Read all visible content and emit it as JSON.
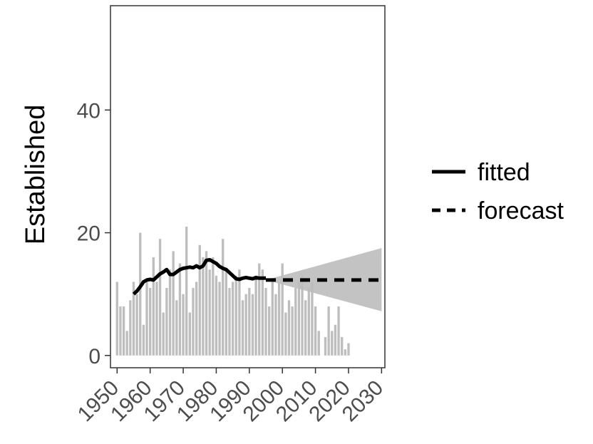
{
  "chart_data": {
    "type": "bar",
    "ylabel": "Established",
    "xlabel": "",
    "xlim": [
      1948,
      2031
    ],
    "ylim": [
      -2,
      57
    ],
    "x_ticks": [
      1950,
      1960,
      1970,
      1980,
      1990,
      2000,
      2010,
      2020,
      2030
    ],
    "y_ticks": [
      0,
      20,
      40
    ],
    "grid": false,
    "legend_position": "right",
    "colors": {
      "bars": "#bebebe",
      "line": "#000000",
      "ribbon": "#bdbdbd",
      "axis": "#333333",
      "tick_text": "#4d4d4d"
    },
    "bars": {
      "years": [
        1950,
        1951,
        1952,
        1953,
        1954,
        1955,
        1956,
        1957,
        1958,
        1959,
        1960,
        1961,
        1962,
        1963,
        1964,
        1965,
        1966,
        1967,
        1968,
        1969,
        1970,
        1971,
        1972,
        1973,
        1974,
        1975,
        1976,
        1977,
        1978,
        1979,
        1980,
        1981,
        1982,
        1983,
        1984,
        1985,
        1986,
        1987,
        1988,
        1989,
        1990,
        1991,
        1992,
        1993,
        1994,
        1995,
        1996,
        1997,
        1998,
        1999,
        2000,
        2001,
        2002,
        2003,
        2004,
        2005,
        2006,
        2007,
        2008,
        2009,
        2010,
        2011,
        2012,
        2013,
        2014,
        2015,
        2016,
        2017,
        2018,
        2019,
        2020
      ],
      "values": [
        12,
        8,
        8,
        4,
        9,
        12,
        10,
        20,
        5,
        12,
        11,
        16,
        12,
        19,
        7,
        11,
        14,
        17,
        9,
        15,
        10,
        21,
        7,
        11,
        12,
        18,
        16,
        17,
        14,
        16,
        13,
        12,
        19,
        14,
        11,
        12,
        13,
        14,
        9,
        10,
        11,
        10,
        13,
        15,
        14,
        11,
        8,
        12,
        10,
        12,
        15,
        7,
        9,
        8,
        11,
        12,
        13,
        9,
        11,
        12,
        8,
        4,
        0,
        3,
        8,
        4,
        5,
        8,
        3,
        1,
        2
      ]
    },
    "series": [
      {
        "name": "fitted",
        "style": "solid",
        "x": [
          1955,
          1956,
          1957,
          1958,
          1959,
          1960,
          1961,
          1962,
          1963,
          1964,
          1965,
          1966,
          1967,
          1968,
          1969,
          1970,
          1971,
          1972,
          1973,
          1974,
          1975,
          1976,
          1977,
          1978,
          1979,
          1980,
          1981,
          1982,
          1983,
          1984,
          1985,
          1986,
          1987,
          1988,
          1989,
          1990,
          1991,
          1992,
          1993,
          1994,
          1995
        ],
        "y": [
          10,
          10.5,
          11.2,
          12,
          12.3,
          12.4,
          12.3,
          12.8,
          13.3,
          13.6,
          14,
          13.2,
          13.2,
          13.6,
          14,
          14.2,
          14.3,
          14.4,
          14.3,
          14.6,
          14.3,
          14.6,
          15.5,
          15.6,
          15.3,
          15,
          14.5,
          14.2,
          14,
          13.5,
          13,
          12.5,
          12.4,
          12.6,
          12.7,
          12.6,
          12.5,
          12.7,
          12.6,
          12.6,
          12.6
        ]
      },
      {
        "name": "forecast",
        "style": "dashed",
        "x": [
          1995,
          2030
        ],
        "y": [
          12.3,
          12.3
        ]
      }
    ],
    "ribbon": {
      "x": [
        1995,
        2030
      ],
      "lower": [
        12.3,
        7.2
      ],
      "upper": [
        12.3,
        17.5
      ]
    }
  }
}
